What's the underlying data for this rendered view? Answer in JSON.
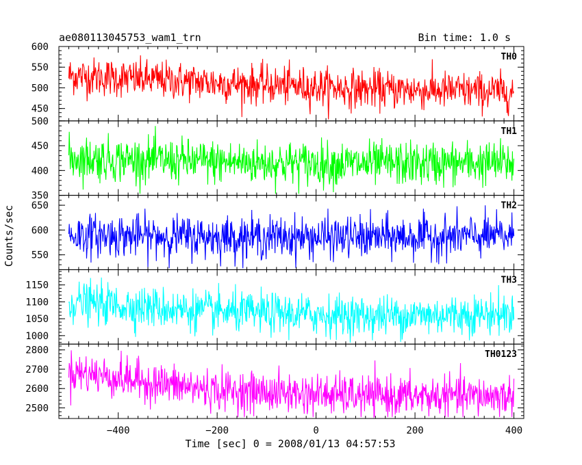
{
  "chart_data": {
    "type": "line",
    "title": "ae080113045753_wam1_trn",
    "subtitle": "Bin time: 1.0 s",
    "xlabel": "Time [sec] 0 = 2008/01/13 04:57:53",
    "ylabel": "Counts/sec",
    "xlim": [
      -520,
      420
    ],
    "x_range": [
      -500,
      400
    ],
    "x_ticks": [
      -400,
      -200,
      0,
      200,
      400
    ],
    "x_tick_labels": [
      "−400",
      "−200",
      "0",
      "200",
      "400"
    ],
    "grid": false,
    "panels": [
      {
        "name": "TH0",
        "color": "#ff0000",
        "ylim": [
          420,
          600
        ],
        "y_ticks": [
          450,
          500,
          550,
          600
        ],
        "y_tick_labels": [
          "450",
          "500",
          "550",
          "600"
        ],
        "trend": [
          [
            -500,
            530
          ],
          [
            -200,
            512
          ],
          [
            100,
            497
          ],
          [
            400,
            490
          ]
        ],
        "noise": 23
      },
      {
        "name": "TH1",
        "color": "#00ff00",
        "ylim": [
          350,
          500
        ],
        "y_ticks": [
          350,
          400,
          450,
          500
        ],
        "y_tick_labels": [
          "350",
          "400",
          "450",
          "500"
        ],
        "trend": [
          [
            -500,
            425
          ],
          [
            -200,
            417
          ],
          [
            100,
            413
          ],
          [
            400,
            415
          ]
        ],
        "noise": 22
      },
      {
        "name": "TH2",
        "color": "#0000ff",
        "ylim": [
          520,
          670
        ],
        "y_ticks": [
          550,
          600,
          650
        ],
        "y_tick_labels": [
          "550",
          "600",
          "650"
        ],
        "trend": [
          [
            -500,
            590
          ],
          [
            -200,
            586
          ],
          [
            100,
            585
          ],
          [
            400,
            588
          ]
        ],
        "noise": 21
      },
      {
        "name": "TH3",
        "color": "#00ffff",
        "ylim": [
          975,
          1195
        ],
        "y_ticks": [
          1000,
          1050,
          1100,
          1150
        ],
        "y_tick_labels": [
          "1000",
          "1050",
          "1100",
          "1150"
        ],
        "trend": [
          [
            -500,
            1100
          ],
          [
            -200,
            1070
          ],
          [
            100,
            1058
          ],
          [
            400,
            1065
          ]
        ],
        "noise": 30
      },
      {
        "name": "TH0123",
        "color": "#ff00ff",
        "ylim": [
          2445,
          2830
        ],
        "y_ticks": [
          2500,
          2600,
          2700,
          2800
        ],
        "y_tick_labels": [
          "2500",
          "2600",
          "2700",
          "2800"
        ],
        "trend": [
          [
            -500,
            2690
          ],
          [
            -300,
            2620
          ],
          [
            -200,
            2590
          ],
          [
            100,
            2560
          ],
          [
            400,
            2560
          ]
        ],
        "noise": 52
      }
    ]
  }
}
